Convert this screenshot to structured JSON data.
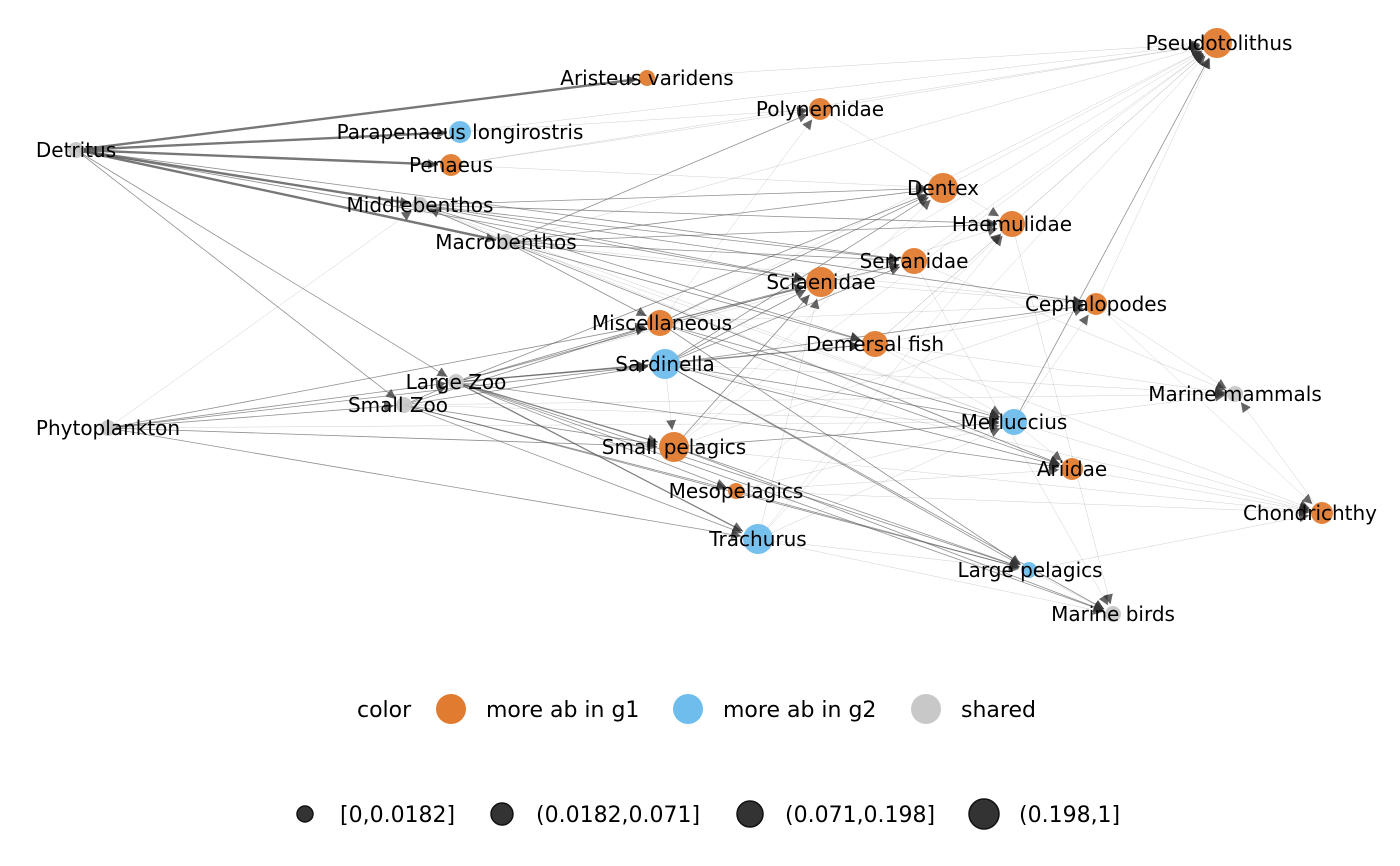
{
  "chart_data": {
    "type": "network",
    "colors": {
      "g1": "#E07B30",
      "g2": "#6EBDEC",
      "shared": "#C8C8C8",
      "edge": "#555555",
      "size_legend": "#333333"
    },
    "nodes": [
      {
        "id": "Pseudotolithus",
        "label": "Pseudotolithus",
        "group": "g1",
        "size": 4
      },
      {
        "id": "Aristeus varidens",
        "label": "Aristeus varidens",
        "group": "g1",
        "size": 1
      },
      {
        "id": "Polynemidae",
        "label": "Polynemidae",
        "group": "g1",
        "size": 2
      },
      {
        "id": "Parapenaeus longirostris",
        "label": "Parapenaeus longirostris",
        "group": "g2",
        "size": 2
      },
      {
        "id": "Detritus",
        "label": "Detritus",
        "group": "shared",
        "size": 1
      },
      {
        "id": "Penaeus",
        "label": "Penaeus",
        "group": "g1",
        "size": 2
      },
      {
        "id": "Dentex",
        "label": "Dentex",
        "group": "g1",
        "size": 4
      },
      {
        "id": "Middlebenthos",
        "label": "Middlebenthos",
        "group": "shared",
        "size": 1
      },
      {
        "id": "Haemulidae",
        "label": "Haemulidae",
        "group": "g1",
        "size": 3
      },
      {
        "id": "Macrobenthos",
        "label": "Macrobenthos",
        "group": "shared",
        "size": 1
      },
      {
        "id": "Serranidae",
        "label": "Serranidae",
        "group": "g1",
        "size": 3
      },
      {
        "id": "Sciaenidae",
        "label": "Sciaenidae",
        "group": "g1",
        "size": 4
      },
      {
        "id": "Cephalopodes",
        "label": "Cephalopodes",
        "group": "g1",
        "size": 2
      },
      {
        "id": "Miscellaneous",
        "label": "Miscellaneous",
        "group": "g1",
        "size": 3
      },
      {
        "id": "Demersal fish",
        "label": "Demersal fish",
        "group": "g1",
        "size": 3
      },
      {
        "id": "Sardinella",
        "label": "Sardinella",
        "group": "g2",
        "size": 4
      },
      {
        "id": "Large Zoo",
        "label": "Large Zoo",
        "group": "shared",
        "size": 1
      },
      {
        "id": "Marine mammals",
        "label": "Marine mammals",
        "group": "shared",
        "size": 1
      },
      {
        "id": "Small Zoo",
        "label": "Small Zoo",
        "group": "shared",
        "size": 1
      },
      {
        "id": "Merluccius",
        "label": "Merluccius",
        "group": "g2",
        "size": 3
      },
      {
        "id": "Phytoplankton",
        "label": "Phytoplankton",
        "group": "shared",
        "size": 1
      },
      {
        "id": "Small pelagics",
        "label": "Small pelagics",
        "group": "g1",
        "size": 4
      },
      {
        "id": "Ariidae",
        "label": "Ariidae",
        "group": "g1",
        "size": 2
      },
      {
        "id": "Mesopelagics",
        "label": "Mesopelagics",
        "group": "g1",
        "size": 1
      },
      {
        "id": "Chondrichthy",
        "label": "Chondrichthy",
        "group": "g1",
        "size": 2
      },
      {
        "id": "Trachurus",
        "label": "Trachurus",
        "group": "g2",
        "size": 4
      },
      {
        "id": "Large pelagics",
        "label": "Large pelagics",
        "group": "g2",
        "size": 1
      },
      {
        "id": "Marine birds",
        "label": "Marine birds",
        "group": "shared",
        "size": 1
      }
    ],
    "edges": [
      [
        "Detritus",
        "Aristeus varidens",
        3
      ],
      [
        "Detritus",
        "Parapenaeus longirostris",
        3
      ],
      [
        "Detritus",
        "Penaeus",
        3
      ],
      [
        "Detritus",
        "Middlebenthos",
        3
      ],
      [
        "Detritus",
        "Macrobenthos",
        3
      ],
      [
        "Detritus",
        "Large Zoo",
        1
      ],
      [
        "Detritus",
        "Small Zoo",
        1
      ],
      [
        "Detritus",
        "Sciaenidae",
        1
      ],
      [
        "Detritus",
        "Serranidae",
        1
      ],
      [
        "Phytoplankton",
        "Large Zoo",
        1
      ],
      [
        "Phytoplankton",
        "Small Zoo",
        1
      ],
      [
        "Phytoplankton",
        "Sardinella",
        1
      ],
      [
        "Phytoplankton",
        "Miscellaneous",
        1
      ],
      [
        "Phytoplankton",
        "Trachurus",
        1
      ],
      [
        "Phytoplankton",
        "Small pelagics",
        1
      ],
      [
        "Phytoplankton",
        "Middlebenthos",
        0
      ],
      [
        "Phytoplankton",
        "Merluccius",
        0
      ],
      [
        "Large Zoo",
        "Sardinella",
        2
      ],
      [
        "Large Zoo",
        "Small pelagics",
        2
      ],
      [
        "Large Zoo",
        "Trachurus",
        2
      ],
      [
        "Large Zoo",
        "Mesopelagics",
        1
      ],
      [
        "Large Zoo",
        "Miscellaneous",
        1
      ],
      [
        "Large Zoo",
        "Dentex",
        1
      ],
      [
        "Large Zoo",
        "Large pelagics",
        1
      ],
      [
        "Large Zoo",
        "Sciaenidae",
        1
      ],
      [
        "Large Zoo",
        "Ariidae",
        1
      ],
      [
        "Large Zoo",
        "Demersal fish",
        1
      ],
      [
        "Large Zoo",
        "Marine birds",
        1
      ],
      [
        "Large Zoo",
        "Serranidae",
        0
      ],
      [
        "Small Zoo",
        "Large Zoo",
        1
      ],
      [
        "Small Zoo",
        "Sardinella",
        1
      ],
      [
        "Small Zoo",
        "Small pelagics",
        1
      ],
      [
        "Small Zoo",
        "Trachurus",
        1
      ],
      [
        "Small Zoo",
        "Mesopelagics",
        1
      ],
      [
        "Small Zoo",
        "Miscellaneous",
        1
      ],
      [
        "Small Zoo",
        "Merluccius",
        0
      ],
      [
        "Small Zoo",
        "Marine mammals",
        0
      ],
      [
        "Small Zoo",
        "Large pelagics",
        1
      ],
      [
        "Middlebenthos",
        "Dentex",
        1
      ],
      [
        "Middlebenthos",
        "Haemulidae",
        1
      ],
      [
        "Middlebenthos",
        "Serranidae",
        1
      ],
      [
        "Middlebenthos",
        "Sciaenidae",
        1
      ],
      [
        "Middlebenthos",
        "Cephalopodes",
        1
      ],
      [
        "Middlebenthos",
        "Demersal fish",
        1
      ],
      [
        "Middlebenthos",
        "Ariidae",
        0
      ],
      [
        "Middlebenthos",
        "Merluccius",
        0
      ],
      [
        "Macrobenthos",
        "Polynemidae",
        1
      ],
      [
        "Macrobenthos",
        "Dentex",
        1
      ],
      [
        "Macrobenthos",
        "Haemulidae",
        1
      ],
      [
        "Macrobenthos",
        "Serranidae",
        1
      ],
      [
        "Macrobenthos",
        "Sciaenidae",
        1
      ],
      [
        "Macrobenthos",
        "Ariidae",
        1
      ],
      [
        "Macrobenthos",
        "Demersal fish",
        1
      ],
      [
        "Macrobenthos",
        "Miscellaneous",
        1
      ],
      [
        "Macrobenthos",
        "Pseudotolithus",
        0
      ],
      [
        "Macrobenthos",
        "Middlebenthos",
        1
      ],
      [
        "Macrobenthos",
        "Cephalopodes",
        0
      ],
      [
        "Macrobenthos",
        "Merluccius",
        0
      ],
      [
        "Penaeus",
        "Polynemidae",
        0
      ],
      [
        "Penaeus",
        "Pseudotolithus",
        0
      ],
      [
        "Penaeus",
        "Dentex",
        0
      ],
      [
        "Parapenaeus longirostris",
        "Polynemidae",
        0
      ],
      [
        "Parapenaeus longirostris",
        "Pseudotolithus",
        0
      ],
      [
        "Aristeus varidens",
        "Pseudotolithus",
        0
      ],
      [
        "Sardinella",
        "Sciaenidae",
        1
      ],
      [
        "Sardinella",
        "Serranidae",
        1
      ],
      [
        "Sardinella",
        "Dentex",
        1
      ],
      [
        "Sardinella",
        "Cephalopodes",
        1
      ],
      [
        "Sardinella",
        "Merluccius",
        1
      ],
      [
        "Sardinella",
        "Large pelagics",
        1
      ],
      [
        "Sardinella",
        "Marine birds",
        1
      ],
      [
        "Sardinella",
        "Marine mammals",
        0
      ],
      [
        "Sardinella",
        "Chondrichthy",
        0
      ],
      [
        "Sardinella",
        "Demersal fish",
        1
      ],
      [
        "Sardinella",
        "Ariidae",
        1
      ],
      [
        "Sardinella",
        "Small pelagics",
        0
      ],
      [
        "Small pelagics",
        "Large pelagics",
        1
      ],
      [
        "Small pelagics",
        "Marine birds",
        1
      ],
      [
        "Small pelagics",
        "Merluccius",
        1
      ],
      [
        "Small pelagics",
        "Sciaenidae",
        1
      ],
      [
        "Small pelagics",
        "Chondrichthy",
        0
      ],
      [
        "Small pelagics",
        "Dentex",
        0
      ],
      [
        "Small pelagics",
        "Pseudotolithus",
        0
      ],
      [
        "Small pelagics",
        "Cephalopodes",
        0
      ],
      [
        "Trachurus",
        "Merluccius",
        0
      ],
      [
        "Trachurus",
        "Large pelagics",
        0
      ],
      [
        "Trachurus",
        "Marine birds",
        0
      ],
      [
        "Trachurus",
        "Sciaenidae",
        0
      ],
      [
        "Trachurus",
        "Pseudotolithus",
        0
      ],
      [
        "Trachurus",
        "Haemulidae",
        0
      ],
      [
        "Mesopelagics",
        "Large pelagics",
        1
      ],
      [
        "Mesopelagics",
        "Merluccius",
        0
      ],
      [
        "Mesopelagics",
        "Ariidae",
        0
      ],
      [
        "Mesopelagics",
        "Chondrichthy",
        0
      ],
      [
        "Mesopelagics",
        "Haemulidae",
        0
      ],
      [
        "Miscellaneous",
        "Dentex",
        1
      ],
      [
        "Miscellaneous",
        "Sciaenidae",
        1
      ],
      [
        "Miscellaneous",
        "Serranidae",
        1
      ],
      [
        "Miscellaneous",
        "Pseudotolithus",
        0
      ],
      [
        "Miscellaneous",
        "Merluccius",
        1
      ],
      [
        "Miscellaneous",
        "Ariidae",
        1
      ],
      [
        "Miscellaneous",
        "Cephalopodes",
        0
      ],
      [
        "Miscellaneous",
        "Polynemidae",
        0
      ],
      [
        "Miscellaneous",
        "Large pelagics",
        1
      ],
      [
        "Polynemidae",
        "Pseudotolithus",
        0
      ],
      [
        "Polynemidae",
        "Haemulidae",
        0
      ],
      [
        "Dentex",
        "Pseudotolithus",
        0
      ],
      [
        "Haemulidae",
        "Pseudotolithus",
        0
      ],
      [
        "Serranidae",
        "Pseudotolithus",
        0
      ],
      [
        "Sciaenidae",
        "Pseudotolithus",
        0
      ],
      [
        "Sciaenidae",
        "Cephalopodes",
        0
      ],
      [
        "Sciaenidae",
        "Haemulidae",
        0
      ],
      [
        "Cephalopodes",
        "Pseudotolithus",
        0
      ],
      [
        "Cephalopodes",
        "Marine mammals",
        0
      ],
      [
        "Cephalopodes",
        "Chondrichthy",
        0
      ],
      [
        "Demersal fish",
        "Cephalopodes",
        0
      ],
      [
        "Demersal fish",
        "Haemulidae",
        0
      ],
      [
        "Demersal fish",
        "Merluccius",
        0
      ],
      [
        "Demersal fish",
        "Marine mammals",
        0
      ],
      [
        "Demersal fish",
        "Chondrichthy",
        0
      ],
      [
        "Demersal fish",
        "Pseudotolithus",
        0
      ],
      [
        "Merluccius",
        "Pseudotolithus",
        1
      ],
      [
        "Merluccius",
        "Cephalopodes",
        0
      ],
      [
        "Merluccius",
        "Marine mammals",
        0
      ],
      [
        "Merluccius",
        "Ariidae",
        0
      ],
      [
        "Merluccius",
        "Chondrichthy",
        0
      ],
      [
        "Large pelagics",
        "Chondrichthy",
        0
      ],
      [
        "Large pelagics",
        "Marine birds",
        0
      ],
      [
        "Ariidae",
        "Chondrichthy",
        0
      ],
      [
        "Serranidae",
        "Marine birds",
        0
      ],
      [
        "Serranidae",
        "Marine mammals",
        0
      ],
      [
        "Haemulidae",
        "Marine birds",
        0
      ],
      [
        "Chondrichthy",
        "Marine mammals",
        0
      ]
    ]
  },
  "legend": {
    "color_title": "color",
    "color_items": [
      {
        "key": "g1",
        "label": "more ab in g1"
      },
      {
        "key": "g2",
        "label": "more ab in g2"
      },
      {
        "key": "shared",
        "label": "shared"
      }
    ],
    "size_items": [
      {
        "label": "[0,0.0182]",
        "level": 1
      },
      {
        "label": "(0.0182,0.071]",
        "level": 2
      },
      {
        "label": "(0.071,0.198]",
        "level": 3
      },
      {
        "label": "(0.198,1]",
        "level": 4
      }
    ]
  }
}
